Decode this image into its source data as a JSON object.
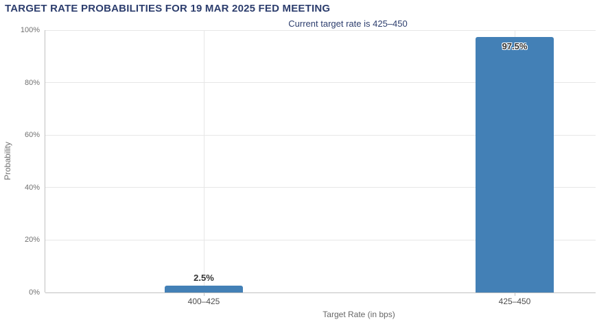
{
  "page": {
    "title": "TARGET RATE PROBABILITIES FOR 19 MAR 2025 FED MEETING",
    "subtitle": "Current target rate is 425–450"
  },
  "chart_data": {
    "type": "bar",
    "title": "TARGET RATE PROBABILITIES FOR 19 MAR 2025 FED MEETING",
    "subtitle": "Current target rate is 425–450",
    "categories": [
      "400–425",
      "425–450"
    ],
    "values": [
      2.5,
      97.5
    ],
    "value_labels": [
      "2.5%",
      "97.5%"
    ],
    "xlabel": "Target Rate (in bps)",
    "ylabel": "Probability",
    "ylim": [
      0,
      100
    ],
    "yticks": [
      "0%",
      "20%",
      "40%",
      "60%",
      "80%",
      "100%"
    ],
    "ytick_values": [
      0,
      20,
      40,
      60,
      80,
      100
    ],
    "grid": true,
    "legend": false,
    "bar_color": "#4380b6"
  },
  "colors": {
    "title": "#2c3d6d",
    "bar": "#4380b6",
    "axis_line": "#c0c0c0",
    "gridline": "#e6e6e6",
    "ytick_label": "#707070",
    "category_label": "#4d4d4d"
  }
}
